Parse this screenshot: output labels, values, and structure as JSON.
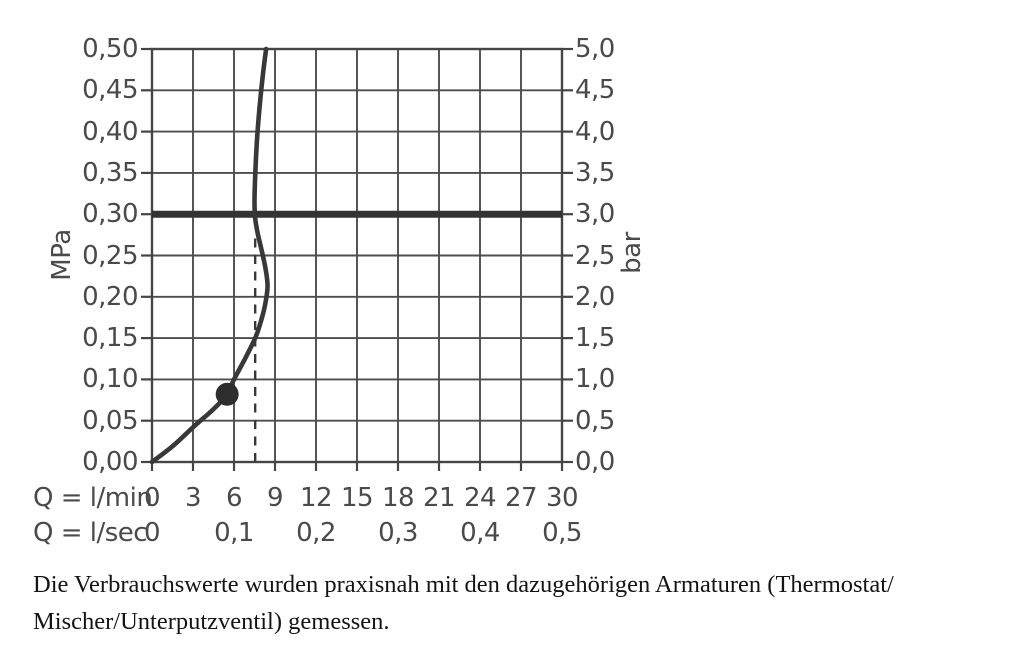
{
  "chart_data": {
    "type": "line",
    "title": "",
    "x_axis": {
      "label_lmin": "Q = l/min",
      "ticks_lmin": [
        "0",
        "3",
        "6",
        "9",
        "12",
        "15",
        "18",
        "21",
        "24",
        "27",
        "30"
      ],
      "label_lsec": "Q = l/sec",
      "ticks_lsec": [
        "0",
        "0,1",
        "0,2",
        "0,3",
        "0,4",
        "0,5"
      ],
      "range_lmin": [
        0,
        30
      ],
      "grid_step_lmin": 3
    },
    "y_left": {
      "label": "MPa",
      "ticks": [
        "0,50",
        "0,45",
        "0,40",
        "0,35",
        "0,30",
        "0,25",
        "0,20",
        "0,15",
        "0,10",
        "0,05",
        "0,00"
      ],
      "range_mpa": [
        0,
        0.5
      ],
      "grid_step_mpa": 0.05
    },
    "y_right": {
      "label": "bar",
      "ticks": [
        "5,0",
        "4,5",
        "4,0",
        "3,5",
        "3,0",
        "2,5",
        "2,0",
        "1,5",
        "1,0",
        "0,5",
        "0,0"
      ],
      "range_bar": [
        0,
        5
      ],
      "grid_step_bar": 0.5
    },
    "series": [
      {
        "name": "flow-curve",
        "points_lmin_mpa": [
          [
            0,
            0
          ],
          [
            1.5,
            0.019
          ],
          [
            3,
            0.042
          ],
          [
            4.5,
            0.064
          ],
          [
            5.5,
            0.082
          ],
          [
            6.0,
            0.1
          ],
          [
            6.9,
            0.128
          ],
          [
            7.6,
            0.152
          ],
          [
            8.1,
            0.178
          ],
          [
            8.38,
            0.2
          ],
          [
            8.45,
            0.215
          ],
          [
            8.3,
            0.235
          ],
          [
            8.0,
            0.258
          ],
          [
            7.72,
            0.278
          ],
          [
            7.55,
            0.295
          ],
          [
            7.5,
            0.315
          ],
          [
            7.56,
            0.35
          ],
          [
            7.68,
            0.39
          ],
          [
            7.87,
            0.43
          ],
          [
            8.12,
            0.47
          ],
          [
            8.35,
            0.5
          ]
        ]
      }
    ],
    "marker_point": {
      "x_lmin": 5.5,
      "y_mpa": 0.082
    },
    "reference_line": {
      "y_mpa": 0.3,
      "y_bar": 3.0
    },
    "dashed_line": {
      "x_lmin": 7.55,
      "y_top_mpa": 0.277
    },
    "grid": true,
    "legend": "none"
  },
  "caption": {
    "line1": "Die Verbrauchswerte wurden praxisnah mit den dazugehörigen Armaturen (Thermostat/",
    "line2": "Mischer/Unterputzventil) gemessen."
  },
  "colors": {
    "grid": "#4d4d4d",
    "axis": "#454545",
    "curve": "#383838",
    "reference_line": "#333333",
    "marker": "#2e2e2e",
    "label_text": "#4a4a4a",
    "caption_text": "#141414",
    "background": "#ffffff"
  }
}
